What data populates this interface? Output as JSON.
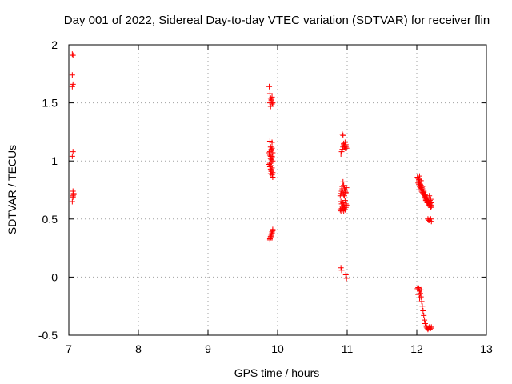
{
  "chart_data": {
    "type": "scatter",
    "title": "Day 001 of 2022, Sidereal Day-to-day VTEC variation (SDTVAR) for receiver flin",
    "xlabel": "GPS time / hours",
    "ylabel": "SDTVAR / TECUs",
    "xlim": [
      7,
      13
    ],
    "ylim": [
      -0.5,
      2
    ],
    "xticks": [
      7,
      8,
      9,
      10,
      11,
      12,
      13
    ],
    "yticks": [
      -0.5,
      0,
      0.5,
      1,
      1.5,
      2
    ],
    "xtick_labels": [
      "7",
      "8",
      "9",
      "10",
      "11",
      "12",
      "13"
    ],
    "ytick_labels": [
      "-0.5",
      "0",
      "0.5",
      "1",
      "1.5",
      "2"
    ],
    "grid": true,
    "marker": "plus",
    "color": "#ff0000",
    "series": [
      {
        "name": "SDTVAR",
        "x": [
          7.05,
          7.06,
          7.05,
          7.06,
          7.05,
          7.06,
          7.05,
          7.06,
          7.07,
          7.06,
          7.05,
          7.06,
          7.07,
          9.88,
          9.89,
          9.9,
          9.91,
          9.92,
          9.89,
          9.9,
          9.91,
          9.92,
          9.93,
          9.89,
          9.9,
          9.91,
          9.92,
          9.88,
          9.89,
          9.9,
          9.91,
          9.92,
          9.93,
          9.88,
          9.89,
          9.9,
          9.91,
          9.92,
          9.93,
          9.89,
          9.9,
          9.91,
          9.92,
          9.9,
          9.91,
          9.92,
          9.93,
          9.89,
          9.9,
          9.91,
          9.92,
          9.93,
          9.89,
          9.9,
          9.91,
          9.92,
          9.93,
          9.88,
          9.89,
          9.9,
          9.91,
          9.92,
          9.93,
          10.91,
          10.92,
          10.93,
          10.94,
          10.95,
          10.96,
          10.97,
          10.98,
          10.93,
          10.94,
          10.95,
          10.96,
          10.97,
          10.98,
          10.99,
          10.92,
          10.93,
          10.94,
          10.95,
          10.96,
          10.97,
          10.98,
          10.99,
          10.9,
          10.91,
          10.92,
          10.93,
          10.94,
          10.95,
          10.96,
          10.97,
          10.98,
          10.91,
          10.92,
          10.93,
          10.94,
          10.95,
          10.96,
          10.97,
          10.98,
          10.9,
          10.91,
          10.92,
          10.93,
          10.94,
          10.95,
          10.96,
          10.97,
          10.98,
          10.99,
          10.91,
          10.92,
          10.98,
          10.99,
          12.01,
          12.02,
          12.03,
          12.04,
          12.05,
          12.06,
          12.07,
          12.08,
          12.09,
          12.1,
          12.11,
          12.12,
          12.13,
          12.14,
          12.15,
          12.16,
          12.17,
          12.18,
          12.19,
          12.2,
          12.21,
          12.02,
          12.03,
          12.04,
          12.05,
          12.06,
          12.07,
          12.08,
          12.09,
          12.1,
          12.11,
          12.12,
          12.13,
          12.14,
          12.15,
          12.16,
          12.17,
          12.18,
          12.19,
          12.2,
          12.03,
          12.05,
          12.07,
          12.09,
          12.11,
          12.13,
          12.15,
          12.17,
          12.19,
          12.21,
          12.04,
          12.06,
          12.08,
          12.1,
          12.12,
          12.14,
          12.16,
          12.18,
          12.2,
          12.16,
          12.17,
          12.18,
          12.19,
          12.2,
          12.21,
          12.01,
          12.02,
          12.03,
          12.04,
          12.05,
          12.06,
          12.07,
          12.08,
          12.09,
          12.1,
          12.11,
          12.12,
          12.13,
          12.14,
          12.15,
          12.16,
          12.17,
          12.18,
          12.19,
          12.2,
          12.21,
          12.02,
          12.04,
          12.06
        ],
        "y": [
          1.92,
          1.91,
          1.74,
          1.66,
          1.64,
          1.08,
          1.04,
          0.74,
          0.71,
          0.69,
          0.65,
          0.7,
          0.72,
          1.64,
          1.58,
          1.54,
          1.52,
          1.49,
          1.5,
          1.47,
          1.53,
          1.55,
          1.5,
          1.17,
          1.12,
          1.1,
          1.16,
          1.07,
          1.05,
          1.02,
          0.99,
          1.03,
          1.0,
          0.97,
          0.95,
          0.93,
          0.91,
          0.88,
          0.86,
          0.98,
          0.96,
          1.01,
          1.04,
          0.89,
          0.92,
          0.94,
          0.9,
          0.33,
          0.35,
          0.37,
          0.39,
          0.41,
          0.32,
          0.34,
          0.36,
          0.38,
          0.4,
          1.06,
          1.08,
          1.04,
          1.09,
          1.11,
          1.07,
          1.06,
          1.08,
          1.1,
          1.12,
          1.14,
          1.12,
          1.11,
          1.14,
          1.23,
          1.22,
          1.15,
          1.13,
          1.16,
          1.12,
          1.11,
          0.75,
          0.78,
          0.82,
          0.79,
          0.76,
          0.74,
          0.72,
          0.77,
          0.7,
          0.72,
          0.74,
          0.76,
          0.73,
          0.71,
          0.7,
          0.75,
          0.73,
          0.65,
          0.63,
          0.61,
          0.64,
          0.62,
          0.6,
          0.66,
          0.63,
          0.58,
          0.57,
          0.59,
          0.58,
          0.6,
          0.57,
          0.59,
          0.58,
          0.6,
          0.62,
          0.08,
          0.06,
          0.02,
          -0.01,
          0.86,
          0.85,
          0.83,
          0.82,
          0.8,
          0.79,
          0.77,
          0.76,
          0.74,
          0.73,
          0.71,
          0.7,
          0.69,
          0.68,
          0.67,
          0.66,
          0.65,
          0.64,
          0.63,
          0.62,
          0.61,
          0.81,
          0.8,
          0.78,
          0.77,
          0.76,
          0.74,
          0.73,
          0.72,
          0.71,
          0.7,
          0.68,
          0.67,
          0.66,
          0.65,
          0.64,
          0.63,
          0.62,
          0.61,
          0.6,
          0.84,
          0.79,
          0.75,
          0.72,
          0.69,
          0.66,
          0.64,
          0.63,
          0.66,
          0.64,
          0.87,
          0.83,
          0.78,
          0.74,
          0.71,
          0.68,
          0.66,
          0.7,
          0.67,
          0.5,
          0.49,
          0.49,
          0.48,
          0.5,
          0.48,
          -0.1,
          -0.09,
          -0.1,
          -0.12,
          -0.14,
          -0.17,
          -0.21,
          -0.25,
          -0.29,
          -0.33,
          -0.37,
          -0.4,
          -0.42,
          -0.43,
          -0.44,
          -0.45,
          -0.44,
          -0.43,
          -0.45,
          -0.44,
          -0.43,
          -0.15,
          -0.18,
          -0.11
        ]
      }
    ]
  }
}
